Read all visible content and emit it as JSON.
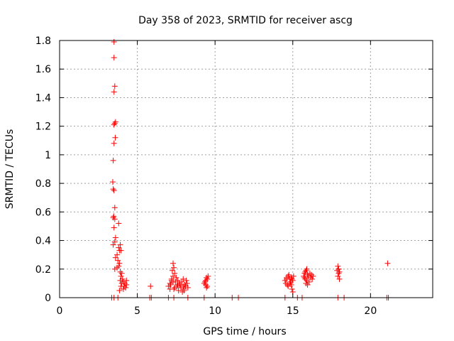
{
  "chart_data": {
    "type": "scatter",
    "title": "Day 358 of 2023, SRMTID for receiver ascg",
    "xlabel": "GPS time / hours",
    "ylabel": "SRMTID / TECUs",
    "xlim": [
      0,
      24
    ],
    "ylim": [
      0,
      1.8
    ],
    "xticks": [
      0,
      5,
      10,
      15,
      20
    ],
    "yticks": [
      0,
      0.2,
      0.4,
      0.6,
      0.8,
      1,
      1.2,
      1.4,
      1.6,
      1.8
    ],
    "ytick_labels": [
      "0",
      "0.2",
      "0.4",
      "0.6",
      "0.8",
      "1",
      "1.2",
      "1.4",
      "1.6",
      "1.8"
    ],
    "grid": true,
    "marker": "+",
    "color": "#ff0000",
    "series": [
      {
        "name": "ascg",
        "points": [
          [
            3.5,
            1.79
          ],
          [
            3.5,
            1.68
          ],
          [
            3.55,
            1.48
          ],
          [
            3.5,
            1.44
          ],
          [
            3.6,
            1.23
          ],
          [
            3.55,
            1.22
          ],
          [
            3.5,
            1.21
          ],
          [
            3.58,
            1.12
          ],
          [
            3.5,
            1.08
          ],
          [
            3.45,
            0.96
          ],
          [
            3.42,
            0.81
          ],
          [
            3.45,
            0.76
          ],
          [
            3.5,
            0.75
          ],
          [
            3.55,
            0.63
          ],
          [
            3.48,
            0.57
          ],
          [
            3.45,
            0.56
          ],
          [
            3.55,
            0.55
          ],
          [
            3.8,
            0.52
          ],
          [
            3.5,
            0.49
          ],
          [
            3.6,
            0.42
          ],
          [
            3.55,
            0.39
          ],
          [
            3.45,
            0.37
          ],
          [
            3.9,
            0.37
          ],
          [
            3.8,
            0.35
          ],
          [
            3.85,
            0.33
          ],
          [
            3.95,
            0.33
          ],
          [
            3.7,
            0.3
          ],
          [
            3.6,
            0.28
          ],
          [
            3.75,
            0.26
          ],
          [
            3.85,
            0.24
          ],
          [
            3.8,
            0.22
          ],
          [
            3.7,
            0.21
          ],
          [
            3.55,
            0.2
          ],
          [
            3.9,
            0.18
          ],
          [
            4.0,
            0.17
          ],
          [
            3.95,
            0.15
          ],
          [
            4.05,
            0.13
          ],
          [
            3.9,
            0.12
          ],
          [
            4.1,
            0.11
          ],
          [
            4.2,
            0.1
          ],
          [
            4.0,
            0.1
          ],
          [
            4.3,
            0.09
          ],
          [
            4.15,
            0.08
          ],
          [
            3.95,
            0.08
          ],
          [
            4.25,
            0.07
          ],
          [
            4.1,
            0.06
          ],
          [
            3.85,
            0.05
          ],
          [
            4.3,
            0.12
          ],
          [
            5.85,
            0.08
          ],
          [
            7.0,
            0.08
          ],
          [
            7.1,
            0.1
          ],
          [
            7.2,
            0.12
          ],
          [
            7.3,
            0.24
          ],
          [
            7.35,
            0.21
          ],
          [
            7.25,
            0.19
          ],
          [
            7.4,
            0.17
          ],
          [
            7.3,
            0.15
          ],
          [
            7.5,
            0.14
          ],
          [
            7.2,
            0.13
          ],
          [
            7.6,
            0.12
          ],
          [
            7.45,
            0.11
          ],
          [
            7.7,
            0.1
          ],
          [
            7.15,
            0.09
          ],
          [
            7.55,
            0.08
          ],
          [
            7.8,
            0.07
          ],
          [
            7.35,
            0.06
          ],
          [
            7.65,
            0.05
          ],
          [
            7.9,
            0.04
          ],
          [
            8.0,
            0.06
          ],
          [
            8.1,
            0.08
          ],
          [
            8.2,
            0.1
          ],
          [
            8.15,
            0.12
          ],
          [
            8.05,
            0.09
          ],
          [
            7.85,
            0.11
          ],
          [
            7.95,
            0.13
          ],
          [
            8.25,
            0.07
          ],
          [
            7.75,
            0.09
          ],
          [
            8.0,
            0.05
          ],
          [
            7.4,
            0.07
          ],
          [
            7.1,
            0.06
          ],
          [
            7.6,
            0.09
          ],
          [
            7.3,
            0.11
          ],
          [
            7.95,
            0.08
          ],
          [
            9.3,
            0.1
          ],
          [
            9.4,
            0.12
          ],
          [
            9.45,
            0.14
          ],
          [
            9.5,
            0.13
          ],
          [
            9.35,
            0.11
          ],
          [
            9.55,
            0.15
          ],
          [
            9.4,
            0.09
          ],
          [
            9.5,
            0.08
          ],
          [
            9.45,
            0.07
          ],
          [
            14.5,
            0.12
          ],
          [
            14.6,
            0.14
          ],
          [
            14.7,
            0.15
          ],
          [
            14.55,
            0.1
          ],
          [
            14.8,
            0.13
          ],
          [
            14.65,
            0.09
          ],
          [
            14.75,
            0.16
          ],
          [
            14.9,
            0.14
          ],
          [
            14.85,
            0.11
          ],
          [
            14.95,
            0.13
          ],
          [
            15.0,
            0.12
          ],
          [
            14.7,
            0.08
          ],
          [
            14.9,
            0.09
          ],
          [
            14.95,
            0.06
          ],
          [
            15.0,
            0.04
          ],
          [
            14.8,
            0.1
          ],
          [
            15.05,
            0.15
          ],
          [
            14.6,
            0.13
          ],
          [
            15.7,
            0.15
          ],
          [
            15.8,
            0.18
          ],
          [
            15.85,
            0.19
          ],
          [
            15.9,
            0.2
          ],
          [
            15.75,
            0.17
          ],
          [
            15.95,
            0.16
          ],
          [
            16.0,
            0.15
          ],
          [
            16.1,
            0.17
          ],
          [
            16.2,
            0.16
          ],
          [
            15.8,
            0.13
          ],
          [
            15.9,
            0.12
          ],
          [
            15.85,
            0.1
          ],
          [
            15.95,
            0.09
          ],
          [
            16.05,
            0.11
          ],
          [
            16.15,
            0.14
          ],
          [
            16.3,
            0.15
          ],
          [
            16.25,
            0.13
          ],
          [
            15.75,
            0.14
          ],
          [
            17.9,
            0.22
          ],
          [
            17.95,
            0.2
          ],
          [
            18.0,
            0.18
          ],
          [
            17.85,
            0.19
          ],
          [
            17.95,
            0.17
          ],
          [
            17.9,
            0.15
          ],
          [
            18.0,
            0.13
          ],
          [
            17.95,
            0.2
          ],
          [
            21.1,
            0.24
          ]
        ]
      }
    ],
    "zero_markers": [
      3.35,
      3.5,
      3.75,
      5.8,
      5.9,
      7.0,
      7.35,
      8.25,
      9.3,
      11.1,
      11.5,
      14.5,
      15.3,
      15.6,
      17.9,
      18.3,
      21.05,
      21.15
    ]
  }
}
